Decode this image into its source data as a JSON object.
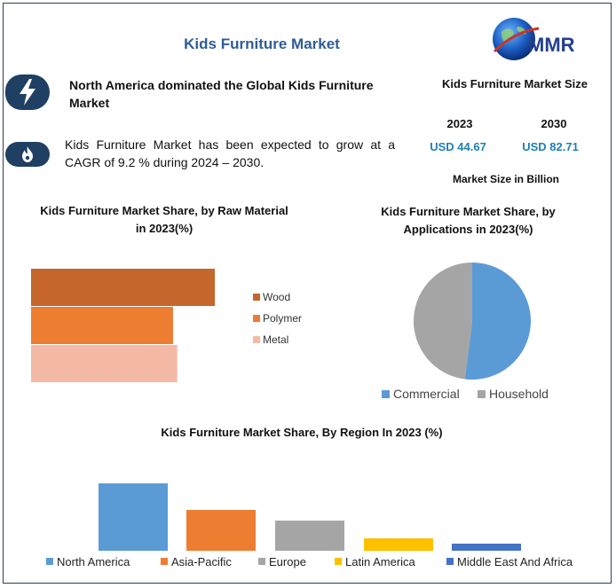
{
  "title": "Kids Furniture Market",
  "logo": {
    "text": "MMR"
  },
  "highlight": {
    "text": "North America dominated the Global Kids Furniture Market",
    "icon": "lightning-icon"
  },
  "growth": {
    "text": "Kids Furniture Market has been expected to grow at a CAGR of 9.2 % during 2024 – 2030.",
    "icon": "flame-icon"
  },
  "market_size": {
    "title": "Kids Furniture Market Size",
    "year1": "2023",
    "value1": "USD 44.67",
    "year2": "2030",
    "value2": "USD 82.71",
    "unit": "Market Size in Billion"
  },
  "colors": {
    "title": "#2f5c96",
    "value": "#1f7fb6",
    "badge": "#1f3f63"
  },
  "chart_data": [
    {
      "type": "bar",
      "orientation": "horizontal",
      "title": "Kids Furniture Market Share, by Raw Material in 2023(%)",
      "categories": [
        "Wood",
        "Polymer",
        "Metal"
      ],
      "values": [
        44,
        34,
        35
      ],
      "colors": [
        "#c5662d",
        "#ed7d31",
        "#f4b9a5"
      ],
      "legend": "right"
    },
    {
      "type": "pie",
      "title": "Kids Furniture Market Share, by Applications in 2023(%)",
      "categories": [
        "Commercial",
        "Household"
      ],
      "values": [
        52,
        48
      ],
      "colors": [
        "#5b9bd5",
        "#a5a5a5"
      ],
      "legend": "bottom"
    },
    {
      "type": "bar",
      "title": "Kids Furniture Market Share, By Region In 2023 (%)",
      "categories": [
        "North America",
        "Asia-Pacific",
        "Europe",
        "Latin America",
        "Middle East And Africa"
      ],
      "values": [
        38,
        23,
        17,
        7,
        4
      ],
      "colors": [
        "#5b9bd5",
        "#ed7d31",
        "#a5a5a5",
        "#ffc000",
        "#4472c4"
      ],
      "legend": "bottom"
    }
  ]
}
